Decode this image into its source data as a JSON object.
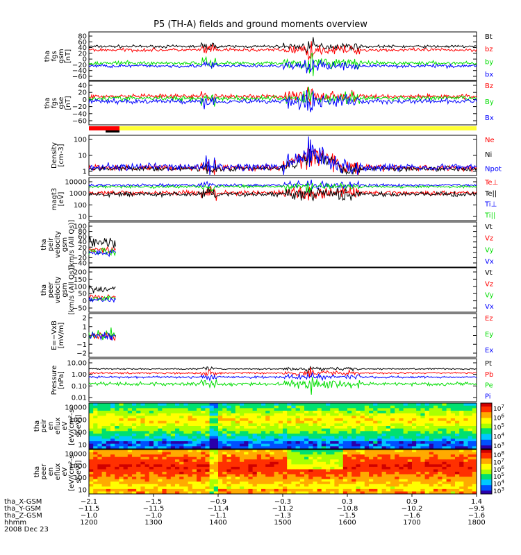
{
  "page": {
    "title": "P5 (TH-A) fields and ground moments overview"
  },
  "colors": {
    "black": "#000000",
    "red": "#ff0000",
    "green": "#00dd00",
    "blue": "#0000ff",
    "yellow": "#ffff33"
  },
  "chart_data": [
    {
      "id": "fgs_gsm",
      "type": "line",
      "ylabel": [
        "tha",
        "fgs",
        "gsm",
        "[nT]"
      ],
      "yticks": [
        "80",
        "60",
        "40",
        "20",
        "0",
        "−20",
        "−40",
        "−60"
      ],
      "ylim": [
        -60,
        80
      ],
      "series": [
        {
          "name": "Bt",
          "color": "#000000",
          "level": 38,
          "noise": 5
        },
        {
          "name": "bz",
          "color": "#ff0000",
          "level": 28,
          "noise": 6
        },
        {
          "name": "by",
          "color": "#00dd00",
          "level": -10,
          "noise": 7
        },
        {
          "name": "bx",
          "color": "#0000ff",
          "level": -18,
          "noise": 6
        }
      ]
    },
    {
      "id": "fgs_gse",
      "type": "line",
      "ylabel": [
        "tha",
        "fgs",
        "gse",
        "[nT]"
      ],
      "yticks": [
        "40",
        "20",
        "0",
        "−20",
        "−40",
        "−60"
      ],
      "ylim": [
        -70,
        45
      ],
      "series": [
        {
          "name": "Bz",
          "color": "#ff0000",
          "level": 5,
          "noise": 7
        },
        {
          "name": "By",
          "color": "#00dd00",
          "level": 0,
          "noise": 8
        },
        {
          "name": "Bx",
          "color": "#0000ff",
          "level": -8,
          "noise": 8
        }
      ]
    },
    {
      "id": "density",
      "type": "line",
      "log": true,
      "ylabel": [
        "Density",
        "[cm-3]"
      ],
      "yticks": [
        "100",
        "10",
        "1"
      ],
      "ylim_exp": [
        -0.3,
        2.3
      ],
      "series": [
        {
          "name": "Ne",
          "color": "#ff0000",
          "level": 0.2,
          "noise": 0.25
        },
        {
          "name": "Ni",
          "color": "#000000",
          "level": 0.15,
          "noise": 0.2
        },
        {
          "name": "Npot",
          "color": "#0000ff",
          "level": 0.25,
          "noise": 0.3
        }
      ]
    },
    {
      "id": "temperature",
      "type": "line",
      "log": true,
      "ylabel": [
        "magt3",
        "[eV]"
      ],
      "yticks": [
        "10000",
        "1000",
        "100",
        "10"
      ],
      "ylim_exp": [
        1,
        4.1
      ],
      "series": [
        {
          "name": "Te⊥",
          "color": "#ff0000",
          "level": 3.0,
          "noise": 0.2
        },
        {
          "name": "Te||",
          "color": "#000000",
          "level": 2.9,
          "noise": 0.2
        },
        {
          "name": "Ti⊥",
          "color": "#0000ff",
          "level": 3.55,
          "noise": 0.12
        },
        {
          "name": "Ti||",
          "color": "#00dd00",
          "level": 3.45,
          "noise": 0.12
        }
      ]
    },
    {
      "id": "peir_velocity",
      "type": "line",
      "ylabel": [
        "tha",
        "peir",
        "velocity",
        "gsm",
        "[km/s (All Qs)]"
      ],
      "yticks": [
        "100",
        "80",
        "60",
        "40",
        "20",
        "0",
        "−20",
        "−40"
      ],
      "ylim": [
        -50,
        110
      ],
      "series": [
        {
          "name": "Vt",
          "color": "#000000",
          "level": 40,
          "noise": 25
        },
        {
          "name": "Vz",
          "color": "#ff0000",
          "level": 10,
          "noise": 15
        },
        {
          "name": "Vy",
          "color": "#00dd00",
          "level": 5,
          "noise": 15
        },
        {
          "name": "Vx",
          "color": "#0000ff",
          "level": 0,
          "noise": 15
        }
      ]
    },
    {
      "id": "peer_velocity",
      "type": "line",
      "ylabel": [
        "tha",
        "peer",
        "velocity",
        "gsm",
        "[km/s (All Qs)]"
      ],
      "yticks": [
        "200",
        "150",
        "100",
        "50",
        "0",
        "−50"
      ],
      "ylim": [
        -80,
        210
      ],
      "series": [
        {
          "name": "Vt",
          "color": "#000000",
          "level": 70,
          "noise": 30
        },
        {
          "name": "Vz",
          "color": "#ff0000",
          "level": 20,
          "noise": 20
        },
        {
          "name": "Vy",
          "color": "#00dd00",
          "level": 10,
          "noise": 20
        },
        {
          "name": "Vx",
          "color": "#0000ff",
          "level": 0,
          "noise": 20
        }
      ]
    },
    {
      "id": "efield",
      "type": "line",
      "ylabel": [
        "E=−VxB",
        "[mV/m]"
      ],
      "yticks": [
        "2",
        "1",
        "0",
        "−1",
        "−2"
      ],
      "ylim": [
        -2.4,
        2.6
      ],
      "series": [
        {
          "name": "Ez",
          "color": "#ff0000",
          "level": 0,
          "noise": 0.6
        },
        {
          "name": "Ey",
          "color": "#00dd00",
          "level": 0.2,
          "noise": 0.8
        },
        {
          "name": "Ex",
          "color": "#0000ff",
          "level": 0,
          "noise": 0.6
        }
      ]
    },
    {
      "id": "pressure",
      "type": "line",
      "log": true,
      "ylabel": [
        "Pressure",
        "[nPa]"
      ],
      "yticks": [
        "10.00",
        "1.00",
        "0.10",
        "0.01"
      ],
      "ylim_exp": [
        -2.1,
        1.05
      ],
      "series": [
        {
          "name": "Pt",
          "color": "#000000",
          "level": 0.3,
          "noise": 0.06
        },
        {
          "name": "Pb",
          "color": "#ff0000",
          "level": 0.0,
          "noise": 0.08
        },
        {
          "name": "Pe",
          "color": "#00dd00",
          "level": -0.8,
          "noise": 0.15
        },
        {
          "name": "Pi",
          "color": "#0000ff",
          "level": -0.3,
          "noise": 0.1
        }
      ]
    },
    {
      "id": "peir_spec",
      "type": "heatmap",
      "ylabel": [
        "tha",
        "peir",
        "en",
        "eflux",
        "eV",
        "[eV/(cm²-s-",
        "sr-eV)]"
      ],
      "yticks": [
        "10000",
        "1000",
        "100",
        "10"
      ],
      "cbar_ticks": [
        "10",
        "10",
        "10",
        "10",
        "10"
      ],
      "cbar_exps": [
        "7",
        "6",
        "5",
        "4",
        "3"
      ]
    },
    {
      "id": "peer_spec",
      "type": "heatmap",
      "ylabel": [
        "tha",
        "peer",
        "en",
        "eflux",
        "eV",
        "[eV/(cm²-s-",
        "sr-eV)]"
      ],
      "yticks": [
        "10000",
        "1000",
        "100",
        "10"
      ],
      "cbar_ticks": [
        "10",
        "10",
        "10",
        "10",
        "10",
        "10"
      ],
      "cbar_exps": [
        "8",
        "7",
        "6",
        "5",
        "4",
        "3"
      ]
    }
  ],
  "status_bar": {
    "colors": [
      "#ff0000",
      "#ffff33"
    ]
  },
  "xaxis": {
    "rows": [
      {
        "label": "tha_X-GSM",
        "values": [
          "−2.1",
          "−1.5",
          "−0.9",
          "−0.3",
          "0.3",
          "0.9",
          "1.4"
        ]
      },
      {
        "label": "tha_Y-GSM",
        "values": [
          "−11.5",
          "−11.5",
          "−11.4",
          "−11.2",
          "−10.8",
          "−10.2",
          "−9.5"
        ]
      },
      {
        "label": "tha_Z-GSM",
        "values": [
          "−1.0",
          "−1.0",
          "−1.1",
          "−1.3",
          "−1.5",
          "−1.6",
          "−1.6"
        ]
      },
      {
        "label": "hhmm",
        "values": [
          "1200",
          "1300",
          "1400",
          "1500",
          "1600",
          "1700",
          "1800"
        ]
      }
    ],
    "date": "2008 Dec 23"
  }
}
